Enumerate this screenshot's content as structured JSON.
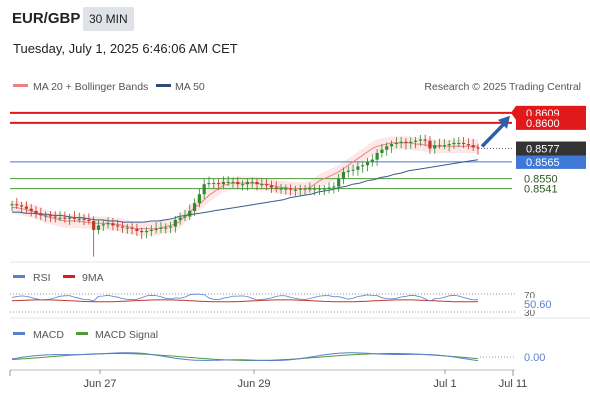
{
  "header": {
    "pair": "EUR/GBP",
    "timeframe": "30 MIN",
    "datetime": "Tuesday, July 1, 2025 6:46:06 AM CET"
  },
  "price_panel": {
    "legend": [
      {
        "label": "MA 20 + Bollinger Bands",
        "color": "#f08080"
      },
      {
        "label": "MA 50",
        "color": "#2c4a7a"
      }
    ],
    "credit": "Research © 2025 Trading Central",
    "levels": [
      {
        "value": 0.8609,
        "label": "0.8609",
        "color": "#e01a1a",
        "kind": "resistance"
      },
      {
        "value": 0.86,
        "label": "0.8600",
        "color": "#e01a1a",
        "kind": "resistance"
      },
      {
        "value": 0.8565,
        "label": "0.8565",
        "color": "#3f78d6",
        "kind": "pivot"
      },
      {
        "value": 0.855,
        "label": "0.8550",
        "color": "#4f9a3a",
        "kind": "support"
      },
      {
        "value": 0.8541,
        "label": "0.8541",
        "color": "#4f9a3a",
        "kind": "support"
      }
    ],
    "last_price": {
      "value": 0.8577,
      "label": "0.8577",
      "color": "#333333"
    }
  },
  "rsi_panel": {
    "legend": [
      {
        "label": "RSI",
        "color": "#5b7fcf"
      },
      {
        "label": "9MA",
        "color": "#e01a1a"
      }
    ],
    "tick_70": "70",
    "tick_30": "30",
    "value_label": "50.60"
  },
  "macd_panel": {
    "legend": [
      {
        "label": "MACD",
        "color": "#5b7fcf"
      },
      {
        "label": "MACD Signal",
        "color": "#4f9a3a"
      }
    ],
    "zero_label": "0.00"
  },
  "x_axis": {
    "ticks": [
      "Jun 27",
      "Jun 29",
      "Jul 1",
      "Jul 11"
    ]
  },
  "chart_data": {
    "type": "candlestick",
    "symbol": "EUR/GBP",
    "interval": "30 MIN",
    "ylim": [
      0.8477,
      0.8625
    ],
    "x_ticks": [
      "Jun 27",
      "Jun 29",
      "Jul 1",
      "Jul 11"
    ],
    "close_series": [
      0.8527,
      0.8526,
      0.8525,
      0.8523,
      0.8521,
      0.8519,
      0.8517,
      0.8517,
      0.8516,
      0.8515,
      0.8515,
      0.8514,
      0.8515,
      0.8514,
      0.8514,
      0.8513,
      0.8512,
      0.8504,
      0.8508,
      0.8509,
      0.851,
      0.8508,
      0.8507,
      0.8506,
      0.8506,
      0.8505,
      0.8503,
      0.8502,
      0.8503,
      0.8504,
      0.8505,
      0.8506,
      0.8506,
      0.8507,
      0.8513,
      0.8515,
      0.8516,
      0.8521,
      0.8528,
      0.8536,
      0.8545,
      0.8546,
      0.8546,
      0.8545,
      0.8547,
      0.8547,
      0.8547,
      0.8545,
      0.8545,
      0.8547,
      0.8547,
      0.8545,
      0.8545,
      0.8544,
      0.8542,
      0.8541,
      0.8541,
      0.8541,
      0.854,
      0.854,
      0.8541,
      0.8541,
      0.8541,
      0.8541,
      0.8541,
      0.8541,
      0.8542,
      0.8543,
      0.855,
      0.8556,
      0.8557,
      0.8558,
      0.8561,
      0.8562,
      0.8565,
      0.8567,
      0.8573,
      0.8576,
      0.8579,
      0.8581,
      0.8582,
      0.8583,
      0.8582,
      0.8583,
      0.8584,
      0.8585,
      0.8584,
      0.8577,
      0.858,
      0.858,
      0.858,
      0.8581,
      0.8582,
      0.8582,
      0.8581,
      0.858,
      0.8578,
      0.8577
    ],
    "ma20_series": [
      0.8524,
      0.8524,
      0.8523,
      0.8522,
      0.8521,
      0.852,
      0.8518,
      0.8516,
      0.8515,
      0.8514,
      0.8513,
      0.8512,
      0.8512,
      0.8512,
      0.8512,
      0.8511,
      0.8511,
      0.851,
      0.851,
      0.851,
      0.851,
      0.8509,
      0.8509,
      0.8508,
      0.8507,
      0.8506,
      0.8505,
      0.8505,
      0.8505,
      0.8505,
      0.8505,
      0.8506,
      0.8507,
      0.8508,
      0.8509,
      0.8512,
      0.8516,
      0.852,
      0.8524,
      0.8527,
      0.8531,
      0.8535,
      0.8538,
      0.8541,
      0.8544,
      0.8545,
      0.8546,
      0.8546,
      0.8546,
      0.8546,
      0.8546,
      0.8546,
      0.8545,
      0.8545,
      0.8544,
      0.8543,
      0.8542,
      0.8542,
      0.8541,
      0.8541,
      0.8541,
      0.8541,
      0.8542,
      0.8545,
      0.8548,
      0.855,
      0.8552,
      0.8554,
      0.8556,
      0.8559,
      0.8562,
      0.8565,
      0.8568,
      0.8571,
      0.8574,
      0.8577,
      0.8579,
      0.858,
      0.8581,
      0.8582,
      0.8582,
      0.8582,
      0.8582,
      0.8582,
      0.8581,
      0.8581,
      0.858,
      0.858,
      0.8579,
      0.8579,
      0.8579,
      0.8579,
      0.8579,
      0.8579,
      0.8579,
      0.8579,
      0.8579,
      0.8579
    ],
    "ma50_series": [
      0.852,
      0.852,
      0.8519,
      0.8519,
      0.8518,
      0.8518,
      0.8517,
      0.8517,
      0.8516,
      0.8515,
      0.8515,
      0.8514,
      0.8513,
      0.8513,
      0.8512,
      0.8512,
      0.8511,
      0.8511,
      0.8511,
      0.8511,
      0.8512,
      0.8512,
      0.8513,
      0.8514,
      0.8516,
      0.8517,
      0.8518,
      0.8519,
      0.852,
      0.8521,
      0.8522,
      0.8523,
      0.8524,
      0.8525,
      0.8526,
      0.8527,
      0.8528,
      0.8529,
      0.853,
      0.8531,
      0.8533,
      0.8534,
      0.8535,
      0.8536,
      0.8538,
      0.8539,
      0.854,
      0.8542,
      0.8543,
      0.8545,
      0.8546,
      0.8548,
      0.8549,
      0.8551,
      0.8552,
      0.8554,
      0.8555,
      0.8557,
      0.8558,
      0.8559,
      0.856,
      0.8561,
      0.8562,
      0.8563,
      0.8564,
      0.8565,
      0.8566,
      0.8567
    ],
    "forecast_arrow": {
      "from": 0.8577,
      "to": 0.8609
    },
    "rsi": {
      "ylim": [
        0,
        100
      ],
      "levels": [
        70,
        30
      ],
      "last": 50.6
    },
    "macd": {
      "zero": 0.0
    }
  }
}
